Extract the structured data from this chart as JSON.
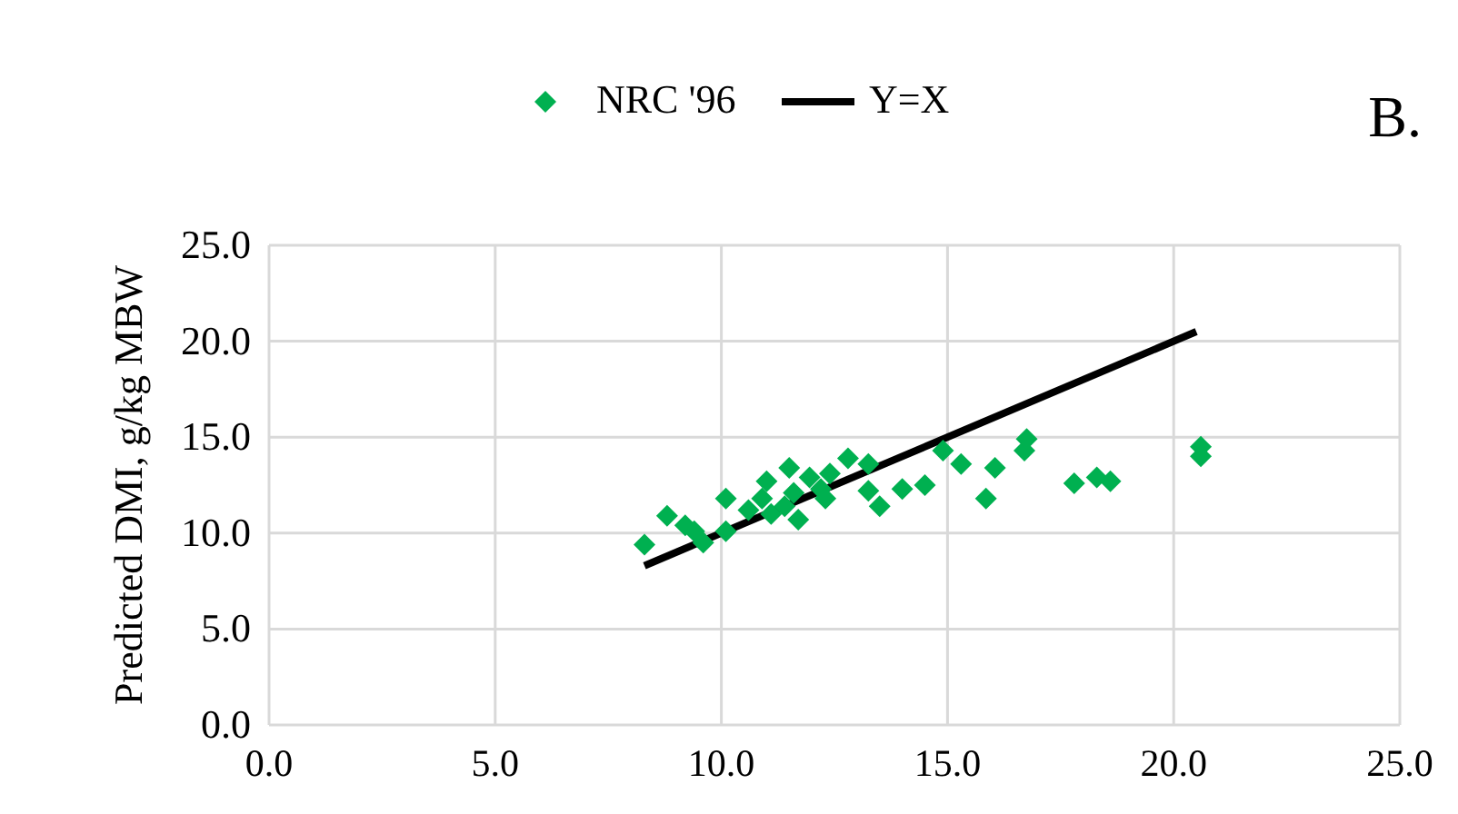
{
  "chart_data": {
    "type": "scatter",
    "ylabel": "Predicted DMI, g/kg MBW",
    "annotations": [
      "B."
    ],
    "xlim": [
      0,
      25
    ],
    "xticks": [
      {
        "value": 0,
        "label": "0.0"
      },
      {
        "value": 5,
        "label": "5.0"
      },
      {
        "value": 10,
        "label": "10.0"
      },
      {
        "value": 15,
        "label": "15.0"
      },
      {
        "value": 20,
        "label": "20.0"
      },
      {
        "value": 25,
        "label": "25.0"
      }
    ],
    "ylim": [
      0,
      25
    ],
    "yticks": [
      {
        "value": 0,
        "label": "0.0"
      },
      {
        "value": 5,
        "label": "5.0"
      },
      {
        "value": 10,
        "label": "10.0"
      },
      {
        "value": 15,
        "label": "15.0"
      },
      {
        "value": 20,
        "label": "20.0"
      },
      {
        "value": 25,
        "label": "25.0"
      }
    ],
    "grid": true,
    "legend": "top",
    "series": [
      {
        "name": "NRC '96",
        "marker": "diamond",
        "color": "#00b050",
        "x": [
          8.3,
          8.8,
          9.2,
          9.4,
          9.6,
          10.1,
          10.1,
          10.6,
          10.9,
          11.0,
          11.1,
          11.4,
          11.5,
          11.6,
          11.7,
          11.95,
          12.2,
          12.4,
          12.3,
          12.8,
          13.25,
          13.25,
          13.5,
          14.0,
          14.5,
          14.9,
          15.3,
          15.85,
          16.05,
          16.7,
          16.75,
          17.8,
          18.3,
          18.6,
          20.6,
          20.6
        ],
        "values": [
          9.4,
          10.9,
          10.4,
          10.1,
          9.5,
          11.8,
          10.1,
          11.2,
          11.8,
          12.7,
          11.0,
          11.4,
          13.4,
          12.1,
          10.7,
          12.9,
          12.3,
          13.1,
          11.8,
          13.9,
          13.6,
          12.2,
          11.4,
          12.3,
          12.5,
          14.3,
          13.6,
          11.8,
          13.4,
          14.3,
          14.9,
          12.6,
          12.9,
          12.7,
          14.5,
          14.0
        ]
      },
      {
        "name": "Y=X",
        "type": "line",
        "marker": "none",
        "line_style": "solid",
        "color": "#000000",
        "x": [
          8.3,
          20.5
        ],
        "values": [
          8.3,
          20.5
        ]
      }
    ]
  }
}
